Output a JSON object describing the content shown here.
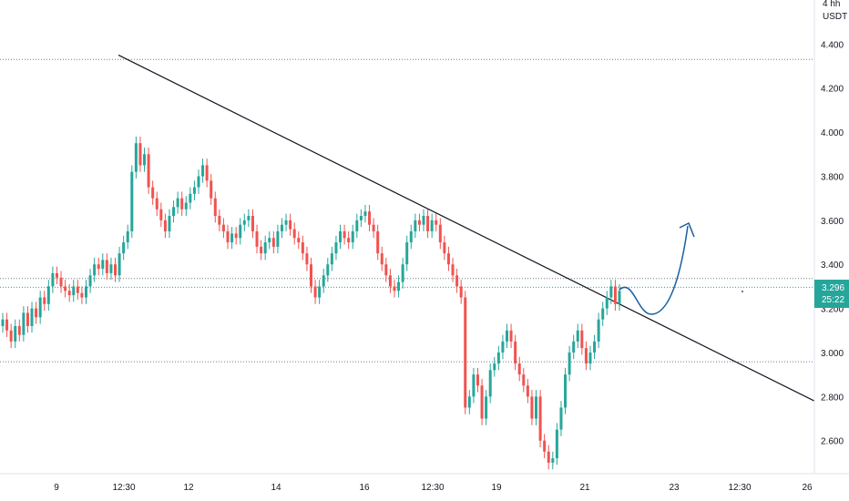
{
  "chart_data": {
    "type": "candlestick",
    "timeframe_label": "4 hh",
    "currency_label": "USDT",
    "y_ticks": [
      "4.400",
      "4.200",
      "4.000",
      "3.800",
      "3.600",
      "3.400",
      "3.200",
      "3.000",
      "2.800",
      "2.600"
    ],
    "y_tick_values": [
      4.4,
      4.2,
      4.0,
      3.8,
      3.6,
      3.4,
      3.2,
      3.0,
      2.8,
      2.6
    ],
    "ylim": [
      2.45,
      4.6
    ],
    "x_ticks": [
      "9",
      "12:30",
      "12",
      "14",
      "16",
      "12:30",
      "19",
      "21",
      "23",
      "12:30",
      "26"
    ],
    "current_price": "3.296",
    "current_price_value": 3.296,
    "countdown": "25:22",
    "horizontal_levels": [
      4.33,
      3.336,
      2.958
    ],
    "trendline": {
      "from": [
        0,
        4.35
      ],
      "to": [
        1,
        2.78
      ]
    },
    "colors": {
      "up": "#26a69a",
      "down": "#ef5350",
      "trendline": "#131722",
      "projection": "#1a5e9e",
      "price_line": "#26a69a",
      "level_line": "#787b86"
    },
    "closes": [
      3.15,
      3.1,
      3.05,
      3.12,
      3.08,
      3.18,
      3.12,
      3.2,
      3.16,
      3.25,
      3.22,
      3.3,
      3.36,
      3.34,
      3.3,
      3.28,
      3.26,
      3.3,
      3.27,
      3.25,
      3.3,
      3.35,
      3.4,
      3.38,
      3.42,
      3.36,
      3.4,
      3.35,
      3.45,
      3.5,
      3.55,
      3.82,
      3.95,
      3.85,
      3.9,
      3.75,
      3.7,
      3.65,
      3.6,
      3.55,
      3.62,
      3.66,
      3.7,
      3.65,
      3.68,
      3.72,
      3.75,
      3.8,
      3.85,
      3.78,
      3.7,
      3.62,
      3.58,
      3.55,
      3.5,
      3.54,
      3.52,
      3.58,
      3.6,
      3.62,
      3.55,
      3.48,
      3.45,
      3.5,
      3.52,
      3.48,
      3.55,
      3.58,
      3.6,
      3.56,
      3.52,
      3.5,
      3.45,
      3.4,
      3.3,
      3.25,
      3.3,
      3.35,
      3.4,
      3.45,
      3.5,
      3.55,
      3.52,
      3.5,
      3.55,
      3.6,
      3.62,
      3.64,
      3.58,
      3.55,
      3.45,
      3.4,
      3.35,
      3.3,
      3.28,
      3.32,
      3.4,
      3.5,
      3.55,
      3.6,
      3.58,
      3.62,
      3.55,
      3.6,
      3.58,
      3.5,
      3.45,
      3.4,
      3.35,
      3.3,
      3.25,
      2.75,
      2.8,
      2.9,
      2.85,
      2.7,
      2.8,
      2.92,
      2.95,
      3.0,
      3.05,
      3.1,
      3.05,
      2.95,
      2.9,
      2.85,
      2.8,
      2.7,
      2.8,
      2.6,
      2.55,
      2.5,
      2.52,
      2.65,
      2.75,
      2.9,
      3.0,
      3.05,
      3.1,
      3.02,
      2.95,
      3.0,
      3.05,
      3.15,
      3.2,
      3.25,
      3.3,
      3.22,
      3.28
    ]
  }
}
